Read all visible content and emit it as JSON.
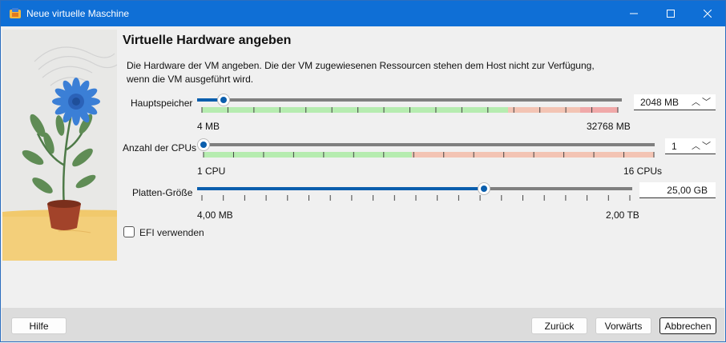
{
  "window": {
    "title": "Neue virtuelle Maschine",
    "controls": {
      "minimize": "—",
      "maximize": "☐",
      "close": "✕"
    }
  },
  "page": {
    "heading": "Virtuelle Hardware angeben",
    "description": "Die Hardware der VM angeben. Die der VM zugewiesenen Ressourcen stehen dem Host nicht zur Verfügung, wenn die VM ausgeführt wird."
  },
  "memory": {
    "label": "Hauptspeicher",
    "min_label": "4 MB",
    "max_label": "32768 MB",
    "value": "2048 MB",
    "fraction": 0.0625
  },
  "cpus": {
    "label": "Anzahl der CPUs",
    "min_label": "1 CPU",
    "max_label": "16 CPUs",
    "value": "1",
    "fraction": 0.0
  },
  "disk": {
    "label": "Platten-Größe",
    "min_label": "4,00 MB",
    "max_label": "2,00 TB",
    "value": "25,00 GB",
    "fraction": 0.66
  },
  "efi": {
    "label": "EFI verwenden",
    "checked": false
  },
  "buttons": {
    "help": "Hilfe",
    "back": "Zurück",
    "next": "Vorwärts",
    "cancel": "Abbrechen"
  },
  "colors": {
    "titlebar": "#0f6fd6",
    "slider_fill": "#0a5ead",
    "track": "#7f7f7f",
    "zone_green": "#b6ecb0",
    "zone_orange": "#f3c4b4",
    "zone_red": "#f0a9a9"
  }
}
